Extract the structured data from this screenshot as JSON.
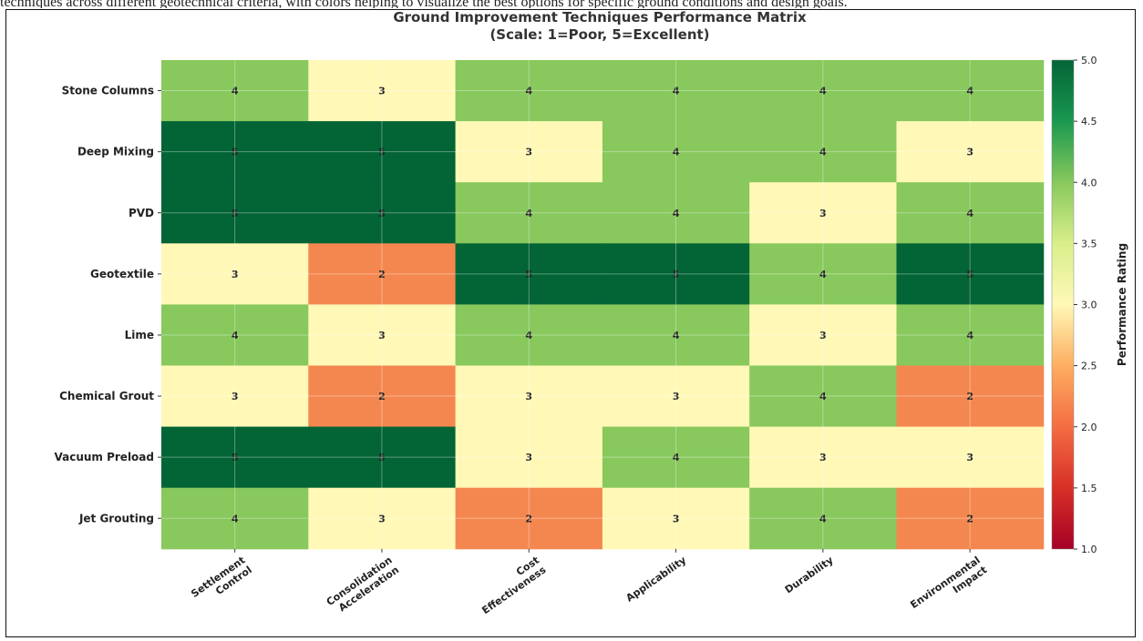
{
  "page": {
    "top_caption": "techniques across different geotechnical criteria, with colors helping to visualize the best options for specific ground conditions and design goals."
  },
  "chart_data": {
    "type": "heatmap",
    "title": "Ground Improvement Techniques Performance Matrix",
    "subtitle": "(Scale: 1=Poor, 5=Excellent)",
    "rows": [
      "Stone Columns",
      "Deep Mixing",
      "PVD",
      "Geotextile",
      "Lime",
      "Chemical Grout",
      "Vacuum Preload",
      "Jet Grouting"
    ],
    "columns": [
      "Settlement\nControl",
      "Consolidation\nAcceleration",
      "Cost\nEffectiveness",
      "Applicability",
      "Durability",
      "Environmental\nImpact"
    ],
    "values": [
      [
        4,
        3,
        4,
        4,
        4,
        4
      ],
      [
        5,
        5,
        3,
        4,
        4,
        3
      ],
      [
        5,
        5,
        4,
        4,
        3,
        4
      ],
      [
        3,
        2,
        5,
        5,
        4,
        5
      ],
      [
        4,
        3,
        4,
        4,
        3,
        4
      ],
      [
        3,
        2,
        3,
        3,
        4,
        2
      ],
      [
        5,
        5,
        3,
        4,
        3,
        3
      ],
      [
        4,
        3,
        2,
        3,
        4,
        2
      ]
    ],
    "colorbar": {
      "label": "Performance Rating",
      "min": 1.0,
      "max": 5.0,
      "ticks": [
        "1.0",
        "1.5",
        "2.0",
        "2.5",
        "3.0",
        "3.5",
        "4.0",
        "4.5",
        "5.0"
      ],
      "colormap": "RdYlGn"
    },
    "grid": true,
    "cell_colors": {
      "2": "#f4874f",
      "3": "#fff8b7",
      "4": "#88c85d",
      "5": "#036436"
    }
  }
}
